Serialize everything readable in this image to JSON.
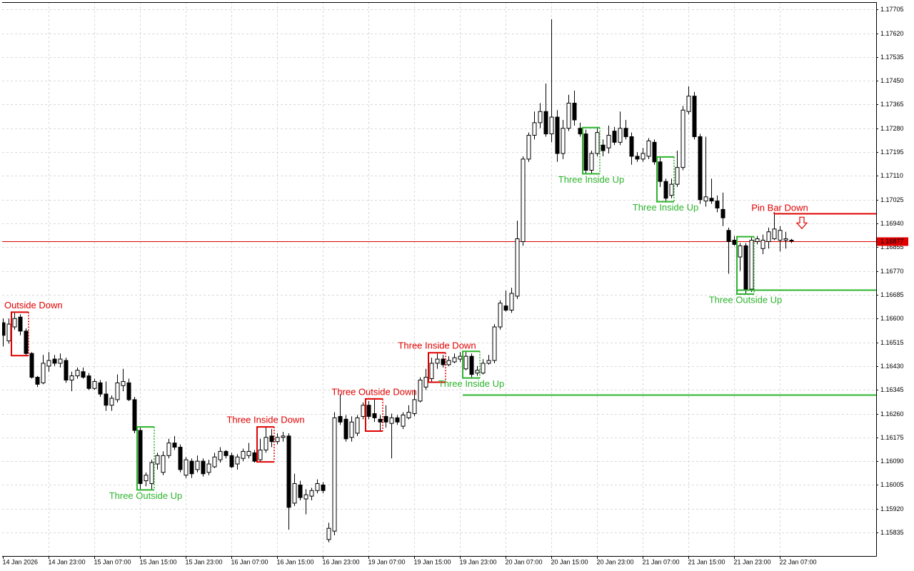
{
  "chart_data": {
    "type": "candlestick",
    "ylim": [
      1.15751,
      1.17731
    ],
    "yticks": [
      1.17705,
      {
        "value": 1.1762,
        "label": "1.17620"
      },
      1.17535,
      {
        "value": 1.1745,
        "label": "1.17450"
      },
      1.17365,
      {
        "value": 1.1728,
        "label": "1.17280"
      },
      1.17195,
      {
        "value": 1.1711,
        "label": "1.17110"
      },
      1.17025,
      {
        "value": 1.1694,
        "label": "1.16940"
      },
      1.16855,
      {
        "value": 1.1677,
        "label": "1.16770"
      },
      1.16685,
      {
        "value": 1.166,
        "label": "1.16600"
      },
      1.16515,
      {
        "value": 1.1643,
        "label": "1.16430"
      },
      1.16345,
      {
        "value": 1.1626,
        "label": "1.16260"
      },
      1.16175,
      {
        "value": 1.1609,
        "label": "1.16090"
      },
      1.16005,
      {
        "value": 1.1592,
        "label": "1.15920"
      },
      1.15835
    ],
    "grid": true,
    "up_color": "#ffffff",
    "down_color": "#000000",
    "categories": [
      "14 Jan 2026",
      null,
      null,
      null,
      null,
      null,
      null,
      null,
      "14 Jan 23:00",
      null,
      null,
      null,
      null,
      null,
      null,
      null,
      "15 Jan 07:00",
      null,
      null,
      null,
      null,
      null,
      null,
      null,
      "15 Jan 15:00",
      null,
      null,
      null,
      null,
      null,
      null,
      null,
      "15 Jan 23:00",
      null,
      null,
      null,
      null,
      null,
      null,
      null,
      "16 Jan 07:00",
      null,
      null,
      null,
      null,
      null,
      null,
      null,
      "16 Jan 15:00",
      null,
      null,
      null,
      null,
      null,
      null,
      null,
      "16 Jan 23:00",
      null,
      null,
      null,
      null,
      null,
      null,
      null,
      "19 Jan 07:00",
      null,
      null,
      null,
      null,
      null,
      null,
      null,
      "19 Jan 15:00",
      null,
      null,
      null,
      null,
      null,
      null,
      null,
      "19 Jan 23:00",
      null,
      null,
      null,
      null,
      null,
      null,
      null,
      "20 Jan 07:00",
      null,
      null,
      null,
      null,
      null,
      null,
      null,
      "20 Jan 15:00",
      null,
      null,
      null,
      null,
      null,
      null,
      null,
      "20 Jan 23:00",
      null,
      null,
      null,
      null,
      null,
      null,
      null,
      "21 Jan 07:00",
      null,
      null,
      null,
      null,
      null,
      null,
      null,
      "21 Jan 15:00",
      null,
      null,
      null,
      null,
      null,
      null,
      null,
      "21 Jan 23:00",
      null,
      null,
      null,
      null,
      null,
      null,
      null,
      "22 Jan 07:00",
      null,
      null
    ],
    "candles": [
      [
        1.16585,
        1.166,
        1.165,
        1.1654
      ],
      [
        1.1652,
        1.166,
        1.1651,
        1.1658
      ],
      [
        1.1657,
        1.1662,
        1.1656,
        1.166
      ],
      [
        1.16605,
        1.16615,
        1.1654,
        1.16555
      ],
      [
        1.16555,
        1.16565,
        1.1647,
        1.16475
      ],
      [
        1.16475,
        1.1648,
        1.16385,
        1.1639
      ],
      [
        1.1639,
        1.16395,
        1.16355,
        1.16365
      ],
      [
        1.1637,
        1.1647,
        1.16365,
        1.1644
      ],
      [
        1.1643,
        1.1648,
        1.1641,
        1.1645
      ],
      [
        1.16455,
        1.1647,
        1.1643,
        1.1644
      ],
      [
        1.1644,
        1.16475,
        1.16425,
        1.16455
      ],
      [
        1.1645,
        1.1646,
        1.1637,
        1.1638
      ],
      [
        1.1638,
        1.1641,
        1.1634,
        1.16395
      ],
      [
        1.16395,
        1.16425,
        1.16385,
        1.16415
      ],
      [
        1.1641,
        1.16425,
        1.16385,
        1.1639
      ],
      [
        1.16395,
        1.16405,
        1.16345,
        1.1635
      ],
      [
        1.1635,
        1.16385,
        1.16345,
        1.16375
      ],
      [
        1.1637,
        1.1638,
        1.1632,
        1.1633
      ],
      [
        1.1633,
        1.16375,
        1.1627,
        1.1629
      ],
      [
        1.1629,
        1.16325,
        1.1627,
        1.16315
      ],
      [
        1.1631,
        1.164,
        1.163,
        1.1637
      ],
      [
        1.1636,
        1.1642,
        1.1634,
        1.16375
      ],
      [
        1.1637,
        1.16385,
        1.16305,
        1.1631
      ],
      [
        1.1631,
        1.1632,
        1.1619,
        1.162
      ],
      [
        1.162,
        1.1621,
        1.1599,
        1.1601
      ],
      [
        1.1602,
        1.1605,
        1.16,
        1.1604
      ],
      [
        1.1601,
        1.16095,
        1.1599,
        1.16085
      ],
      [
        1.1608,
        1.1612,
        1.1606,
        1.1611
      ],
      [
        1.1605,
        1.16125,
        1.1604,
        1.1611
      ],
      [
        1.1611,
        1.1617,
        1.161,
        1.16155
      ],
      [
        1.16155,
        1.1618,
        1.1613,
        1.1614
      ],
      [
        1.1614,
        1.1615,
        1.1605,
        1.1606
      ],
      [
        1.1604,
        1.16105,
        1.1603,
        1.16095
      ],
      [
        1.1609,
        1.161,
        1.1603,
        1.16045
      ],
      [
        1.1606,
        1.1611,
        1.1605,
        1.1609
      ],
      [
        1.1609,
        1.161,
        1.16035,
        1.16045
      ],
      [
        1.1605,
        1.16095,
        1.1604,
        1.1608
      ],
      [
        1.1607,
        1.1612,
        1.16065,
        1.16105
      ],
      [
        1.16095,
        1.1614,
        1.16085,
        1.16125
      ],
      [
        1.16125,
        1.1613,
        1.161,
        1.1611
      ],
      [
        1.1611,
        1.1612,
        1.16065,
        1.1607
      ],
      [
        1.1608,
        1.16115,
        1.1606,
        1.16105
      ],
      [
        1.161,
        1.16135,
        1.1609,
        1.16125
      ],
      [
        1.1611,
        1.16155,
        1.161,
        1.16125
      ],
      [
        1.1612,
        1.1613,
        1.16085,
        1.1609
      ],
      [
        1.16095,
        1.1617,
        1.1609,
        1.1613
      ],
      [
        1.1613,
        1.1621,
        1.1612,
        1.16175
      ],
      [
        1.1618,
        1.16205,
        1.1614,
        1.1616
      ],
      [
        1.1616,
        1.1619,
        1.1615,
        1.16175
      ],
      [
        1.16175,
        1.16195,
        1.1616,
        1.1618
      ],
      [
        1.1618,
        1.1619,
        1.15845,
        1.15925
      ],
      [
        1.1594,
        1.16045,
        1.1593,
        1.1601
      ],
      [
        1.16005,
        1.1602,
        1.1595,
        1.1596
      ],
      [
        1.15955,
        1.1599,
        1.159,
        1.1597
      ],
      [
        1.15965,
        1.15995,
        1.1595,
        1.15985
      ],
      [
        1.15985,
        1.16025,
        1.15975,
        1.1601
      ],
      [
        1.16005,
        1.16015,
        1.15975,
        1.15985
      ],
      [
        1.1581,
        1.1587,
        1.158,
        1.1585
      ],
      [
        1.1584,
        1.16265,
        1.15825,
        1.16245
      ],
      [
        1.1625,
        1.1633,
        1.1622,
        1.1623
      ],
      [
        1.1624,
        1.16255,
        1.1616,
        1.1617
      ],
      [
        1.16175,
        1.1625,
        1.1616,
        1.1623
      ],
      [
        1.1619,
        1.16255,
        1.1618,
        1.16245
      ],
      [
        1.1625,
        1.163,
        1.1624,
        1.1629
      ],
      [
        1.1629,
        1.16305,
        1.1624,
        1.1625
      ],
      [
        1.1626,
        1.1631,
        1.1623,
        1.16245
      ],
      [
        1.1624,
        1.16255,
        1.162,
        1.1623
      ],
      [
        1.1625,
        1.1629,
        1.1621,
        1.1623
      ],
      [
        1.16225,
        1.1626,
        1.161,
        1.16245
      ],
      [
        1.16245,
        1.16255,
        1.1622,
        1.1623
      ],
      [
        1.16215,
        1.16265,
        1.16205,
        1.16255
      ],
      [
        1.16245,
        1.1629,
        1.1624,
        1.16265
      ],
      [
        1.1626,
        1.16345,
        1.1625,
        1.1631
      ],
      [
        1.16305,
        1.1639,
        1.163,
        1.1638
      ],
      [
        1.16355,
        1.1642,
        1.16345,
        1.1639
      ],
      [
        1.16385,
        1.1646,
        1.16375,
        1.1644
      ],
      [
        1.1644,
        1.16475,
        1.1642,
        1.16455
      ],
      [
        1.16455,
        1.1647,
        1.16425,
        1.16435
      ],
      [
        1.16435,
        1.16465,
        1.1643,
        1.1645
      ],
      [
        1.16445,
        1.16475,
        1.1644,
        1.1646
      ],
      [
        1.16455,
        1.1648,
        1.16445,
        1.16465
      ],
      [
        1.1642,
        1.1648,
        1.16415,
        1.16465
      ],
      [
        1.16465,
        1.16475,
        1.1639,
        1.164
      ],
      [
        1.16405,
        1.1643,
        1.16395,
        1.16415
      ],
      [
        1.16405,
        1.16455,
        1.164,
        1.1644
      ],
      [
        1.1644,
        1.1647,
        1.16435,
        1.1645
      ],
      [
        1.1645,
        1.1658,
        1.1644,
        1.1657
      ],
      [
        1.1657,
        1.16665,
        1.1656,
        1.16655
      ],
      [
        1.16645,
        1.167,
        1.16625,
        1.1663
      ],
      [
        1.1663,
        1.1671,
        1.1662,
        1.1669
      ],
      [
        1.1668,
        1.1695,
        1.1667,
        1.16885
      ],
      [
        1.16875,
        1.1718,
        1.1686,
        1.1717
      ],
      [
        1.1717,
        1.17265,
        1.1716,
        1.17255
      ],
      [
        1.17255,
        1.1734,
        1.1724,
        1.173
      ],
      [
        1.173,
        1.1737,
        1.1728,
        1.1734
      ],
      [
        1.1734,
        1.1744,
        1.1725,
        1.1726
      ],
      [
        1.1726,
        1.1767,
        1.1723,
        1.1732
      ],
      [
        1.1732,
        1.17345,
        1.1716,
        1.1719
      ],
      [
        1.1719,
        1.1731,
        1.1717,
        1.1728
      ],
      [
        1.1728,
        1.174,
        1.1727,
        1.1737
      ],
      [
        1.1737,
        1.17415,
        1.1729,
        1.1731
      ],
      [
        1.1728,
        1.173,
        1.1725,
        1.1726
      ],
      [
        1.1726,
        1.17275,
        1.1712,
        1.1713
      ],
      [
        1.1713,
        1.172,
        1.1712,
        1.1719
      ],
      [
        1.1719,
        1.1728,
        1.1718,
        1.17265
      ],
      [
        1.1722,
        1.1724,
        1.1718,
        1.172
      ],
      [
        1.1721,
        1.1729,
        1.1719,
        1.17255
      ],
      [
        1.1727,
        1.17285,
        1.1722,
        1.1723
      ],
      [
        1.1723,
        1.1734,
        1.1722,
        1.1728
      ],
      [
        1.1728,
        1.1731,
        1.1724,
        1.1725
      ],
      [
        1.1725,
        1.17265,
        1.1715,
        1.1718
      ],
      [
        1.1718,
        1.17195,
        1.1716,
        1.1717
      ],
      [
        1.1717,
        1.1721,
        1.1716,
        1.1719
      ],
      [
        1.1718,
        1.17245,
        1.1717,
        1.17235
      ],
      [
        1.1723,
        1.1724,
        1.1715,
        1.1716
      ],
      [
        1.1716,
        1.17175,
        1.1707,
        1.1709
      ],
      [
        1.1709,
        1.171,
        1.1702,
        1.1703
      ],
      [
        1.1704,
        1.171,
        1.1703,
        1.1708
      ],
      [
        1.1708,
        1.172,
        1.1707,
        1.1714
      ],
      [
        1.1714,
        1.1736,
        1.1713,
        1.17345
      ],
      [
        1.1734,
        1.1743,
        1.1733,
        1.17395
      ],
      [
        1.17395,
        1.1741,
        1.1724,
        1.1725
      ],
      [
        1.1725,
        1.1726,
        1.1701,
        1.17025
      ],
      [
        1.1702,
        1.1725,
        1.17,
        1.17035
      ],
      [
        1.1703,
        1.171,
        1.1701,
        1.1702
      ],
      [
        1.1702,
        1.1704,
        1.1698,
        1.16995
      ],
      [
        1.1699,
        1.1705,
        1.1693,
        1.1696
      ],
      [
        1.16915,
        1.16925,
        1.1676,
        1.16875
      ],
      [
        1.1688,
        1.16895,
        1.1686,
        1.16865
      ],
      [
        1.1682,
        1.1687,
        1.1677,
        1.1686
      ],
      [
        1.1686,
        1.1687,
        1.1669,
        1.16705
      ],
      [
        1.16705,
        1.1689,
        1.16695,
        1.1688
      ],
      [
        1.16875,
        1.16895,
        1.16865,
        1.16885
      ],
      [
        1.1685,
        1.169,
        1.1683,
        1.1688
      ],
      [
        1.16875,
        1.16925,
        1.1685,
        1.1691
      ],
      [
        1.16885,
        1.1698,
        1.1688,
        1.1692
      ],
      [
        1.1688,
        1.1693,
        1.1684,
        1.16915
      ],
      [
        1.1688,
        1.1691,
        1.1685,
        1.16885
      ],
      [
        1.1688,
        1.16885,
        1.1687,
        1.16877
      ]
    ],
    "price_line": {
      "value": 1.16877,
      "label": "1.16877",
      "color": "#e00000"
    },
    "patterns": [
      {
        "label": "Three Outside Down",
        "direction": "down",
        "color": "#e00000",
        "start": 2,
        "end": 4,
        "box": true
      },
      {
        "label": "Three Outside Up",
        "direction": "up",
        "color": "#2db42d",
        "start": 24,
        "end": 26,
        "box": true
      },
      {
        "label": "Three Inside Down",
        "direction": "down",
        "color": "#e00000",
        "start": 45,
        "end": 47,
        "box": true
      },
      {
        "label": "Three Outside Down",
        "direction": "down",
        "color": "#e00000",
        "start": 64,
        "end": 66,
        "box": true
      },
      {
        "label": "Three Inside Down",
        "direction": "down",
        "color": "#e00000",
        "start": 75,
        "end": 77,
        "box": true
      },
      {
        "label": "Three Inside Up",
        "direction": "up",
        "color": "#2db42d",
        "start": 81,
        "end": 83,
        "box": true,
        "level": 1.16327
      },
      {
        "label": "Three Inside Up",
        "direction": "up",
        "color": "#2db42d",
        "start": 102,
        "end": 104,
        "box": true
      },
      {
        "label": "Three Inside Up",
        "direction": "up",
        "color": "#2db42d",
        "start": 115,
        "end": 117,
        "box": true
      },
      {
        "label": "Three Outside Up",
        "direction": "up",
        "color": "#2db42d",
        "start": 129,
        "end": 131,
        "box": true,
        "level": 1.16703
      },
      {
        "label": "Pin Bar Down",
        "direction": "down",
        "color": "#e00000",
        "start": 135,
        "end": 135,
        "box": false,
        "level": 1.16975,
        "marker": "down-arrow"
      }
    ]
  }
}
